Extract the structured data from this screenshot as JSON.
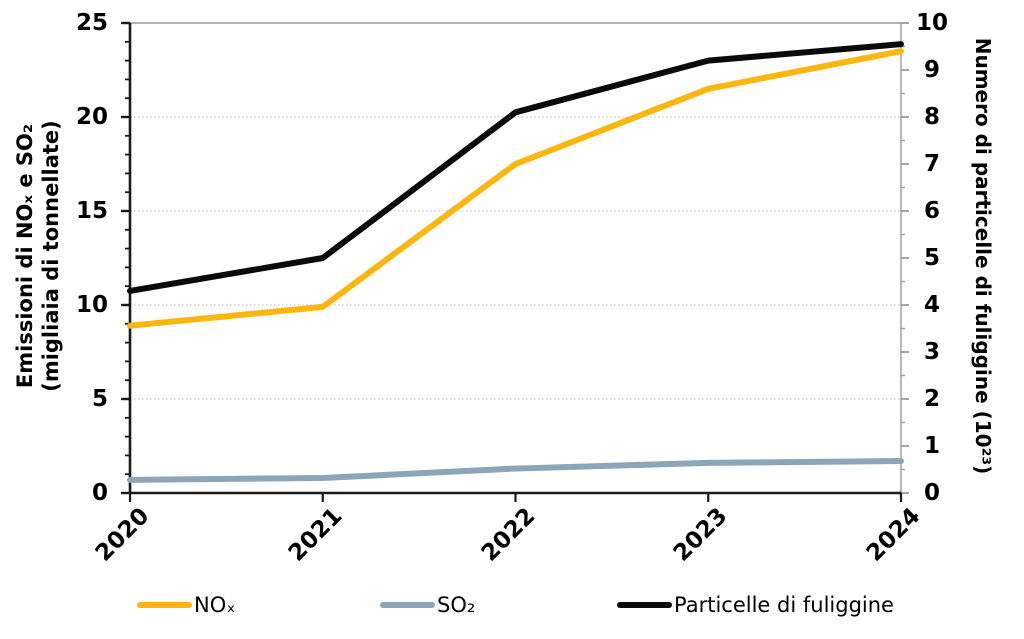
{
  "chart_data": {
    "type": "line",
    "title": "",
    "x_categories": [
      "2020",
      "2021",
      "2022",
      "2023",
      "2024"
    ],
    "series": [
      {
        "name": "NOₓ",
        "axis": "left",
        "color": "#FBB610",
        "values": [
          8.9,
          9.9,
          17.5,
          21.5,
          23.5
        ]
      },
      {
        "name": "SO₂",
        "axis": "left",
        "color": "#8DA5B8",
        "values": [
          0.7,
          0.8,
          1.3,
          1.6,
          1.7
        ]
      },
      {
        "name": "Particelle di fuliggine",
        "axis": "right",
        "color": "#0A0A0A",
        "values": [
          4.3,
          5.0,
          8.1,
          9.2,
          9.55
        ]
      }
    ],
    "left_axis": {
      "title_line1": "Emissioni  di NOₓ e SO₂",
      "title_line2": "(migliaia di tonnellate)",
      "min": 0,
      "max": 25,
      "tick_step": 5,
      "minor_step": 1,
      "tick_labels": [
        "0",
        "5",
        "10",
        "15",
        "20",
        "25"
      ]
    },
    "right_axis": {
      "title": "Numero di particelle di fuliggine (10²³)",
      "min": 0,
      "max": 10,
      "tick_step": 1,
      "minor_step": 0.5,
      "tick_labels": [
        "0",
        "1",
        "2",
        "3",
        "4",
        "5",
        "6",
        "7",
        "8",
        "9",
        "10"
      ]
    },
    "grid": {
      "horizontal": true,
      "style": "dotted",
      "color": "#c8c8c8"
    },
    "frame_color": "#9b9b9b",
    "axis_color": "#1a1a1a",
    "legend_position": "bottom"
  }
}
